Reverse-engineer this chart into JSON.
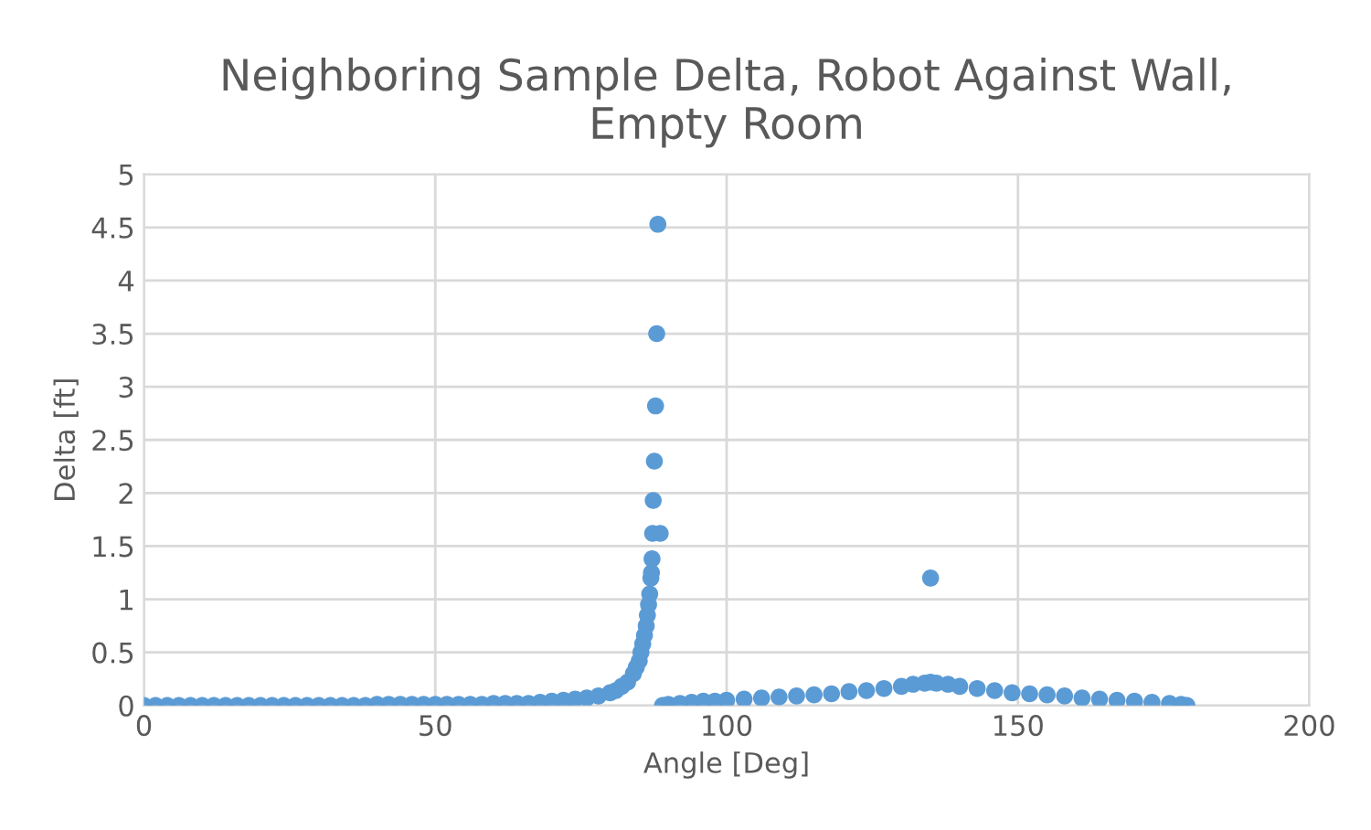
{
  "chart_data": {
    "type": "scatter",
    "title": "Neighboring Sample Delta, Robot Against Wall,\nEmpty Room",
    "xlabel": "Angle [Deg]",
    "ylabel": "Delta [ft]",
    "xlim": [
      0,
      200
    ],
    "xticks": [
      0,
      50,
      100,
      150,
      200
    ],
    "ylim": [
      0,
      5
    ],
    "yticks": [
      0,
      {
        "value": 0.5,
        "label": "0.5"
      },
      1,
      {
        "value": 1.5,
        "label": "1.5"
      },
      2,
      {
        "value": 2.5,
        "label": "2.5"
      },
      3,
      {
        "value": 3.5,
        "label": "3.5"
      },
      4,
      {
        "value": 4.5,
        "label": "4.5"
      },
      5
    ],
    "grid": true,
    "marker": "circle",
    "series": [
      {
        "color": "#5b9bd5",
        "x": [
          0,
          2,
          4,
          6,
          8,
          10,
          12,
          14,
          16,
          18,
          20,
          22,
          24,
          26,
          28,
          30,
          32,
          34,
          36,
          38,
          40,
          42,
          44,
          46,
          48,
          50,
          52,
          54,
          56,
          58,
          60,
          62,
          64,
          66,
          68,
          70,
          72,
          74,
          76,
          78,
          80,
          81,
          82,
          83,
          84,
          84.5,
          85,
          85.3,
          85.6,
          85.9,
          86.2,
          86.4,
          86.6,
          86.8,
          87,
          87.1,
          87.2,
          87.3,
          87.4,
          87.6,
          87.8,
          88,
          88.2,
          88.6,
          89,
          90,
          92,
          94,
          96,
          98,
          100,
          103,
          106,
          109,
          112,
          115,
          118,
          121,
          124,
          127,
          130,
          132,
          134,
          135,
          136,
          138,
          140,
          143,
          146,
          149,
          152,
          155,
          158,
          161,
          164,
          167,
          170,
          173,
          176,
          178,
          179,
          135
        ],
        "values": [
          0,
          0,
          0,
          0,
          0,
          0,
          0,
          0,
          0,
          0,
          0,
          0,
          0,
          0,
          0,
          0,
          0,
          0,
          0,
          0,
          0.01,
          0.01,
          0.01,
          0.01,
          0.01,
          0.01,
          0.01,
          0.01,
          0.01,
          0.01,
          0.02,
          0.02,
          0.02,
          0.02,
          0.03,
          0.04,
          0.05,
          0.06,
          0.07,
          0.09,
          0.12,
          0.14,
          0.18,
          0.22,
          0.3,
          0.36,
          0.42,
          0.5,
          0.58,
          0.66,
          0.75,
          0.85,
          0.95,
          1.05,
          1.2,
          1.25,
          1.38,
          1.62,
          1.93,
          2.3,
          2.82,
          3.5,
          4.53,
          1.62,
          0,
          0.01,
          0.02,
          0.03,
          0.04,
          0.04,
          0.05,
          0.06,
          0.07,
          0.08,
          0.09,
          0.1,
          0.11,
          0.13,
          0.14,
          0.16,
          0.18,
          0.2,
          0.21,
          0.22,
          0.21,
          0.2,
          0.18,
          0.16,
          0.14,
          0.12,
          0.11,
          0.1,
          0.09,
          0.07,
          0.06,
          0.05,
          0.04,
          0.03,
          0.02,
          0.01,
          0,
          1.2
        ]
      }
    ]
  }
}
